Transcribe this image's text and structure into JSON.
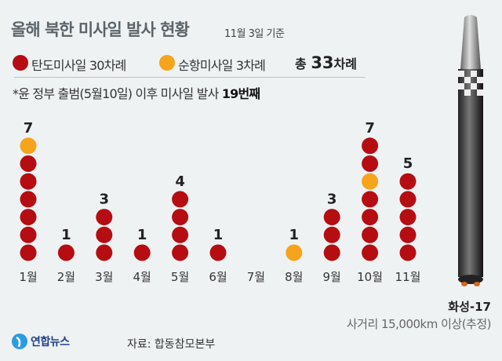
{
  "header": {
    "title": "올해 북한 미사일 발사 현황",
    "as_of": "11월 3일 기준"
  },
  "legend": {
    "ballistic": "탄도미사일 30차례",
    "cruise": "순항미사일 3차례",
    "total_prefix": "총",
    "total_value": "33",
    "total_suffix": "차례"
  },
  "note": {
    "text": "*윤 정부 출범(5월10일) 이후 미사일 발사",
    "highlight": "19번째"
  },
  "colors": {
    "ballistic": "#b50d12",
    "cruise": "#f5a41c",
    "background": "#eff2f3"
  },
  "chart_data": {
    "type": "dot-column",
    "title": "올해 북한 미사일 발사 현황",
    "categories": [
      "1월",
      "2월",
      "3월",
      "4월",
      "5월",
      "6월",
      "7월",
      "8월",
      "9월",
      "10월",
      "11월"
    ],
    "totals": [
      7,
      1,
      3,
      1,
      4,
      1,
      0,
      1,
      3,
      7,
      5
    ],
    "series": [
      {
        "name": "탄도미사일",
        "values": [
          6,
          1,
          3,
          1,
          4,
          1,
          0,
          0,
          3,
          6,
          5
        ]
      },
      {
        "name": "순항미사일",
        "values": [
          1,
          0,
          0,
          0,
          0,
          0,
          0,
          1,
          0,
          1,
          0
        ]
      }
    ],
    "cruise_positions_from_bottom": [
      [
        6
      ],
      [],
      [],
      [],
      [],
      [],
      [],
      [
        0
      ],
      [],
      [
        4
      ],
      []
    ]
  },
  "missile": {
    "name": "화성-17",
    "range": "사거리 15,000km 이상(추정)"
  },
  "footer": {
    "logo": "연합뉴스",
    "source": "자료: 합동참모본부"
  }
}
